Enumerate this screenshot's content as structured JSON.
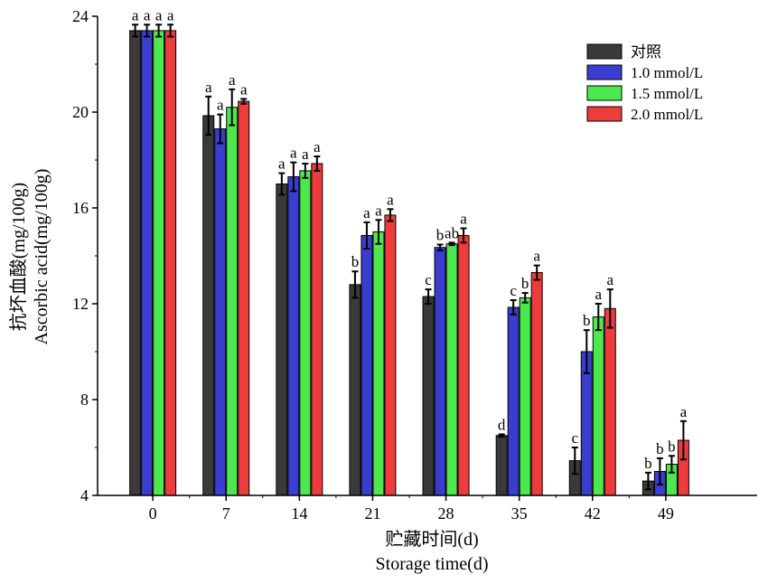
{
  "chart_data": {
    "type": "bar",
    "title": "",
    "xlabel_cn": "贮藏时间(d)",
    "xlabel_en": "Storage time(d)",
    "ylabel_cn": "抗坏血酸(mg/100g)",
    "ylabel_en": "Ascorbic acid(mg/100g)",
    "ylim": [
      4,
      24
    ],
    "yticks": [
      4,
      8,
      12,
      16,
      20,
      24
    ],
    "categories": [
      "0",
      "7",
      "14",
      "21",
      "28",
      "35",
      "42",
      "49"
    ],
    "legend_position": "top-right",
    "series": [
      {
        "name": "对照",
        "color": "#3a3a3a",
        "values": [
          23.4,
          19.85,
          17.0,
          12.8,
          12.3,
          6.5,
          5.45,
          4.6
        ],
        "errors": [
          0.25,
          0.8,
          0.45,
          0.55,
          0.3,
          0.05,
          0.55,
          0.35
        ],
        "labels": [
          "a",
          "a",
          "a",
          "b",
          "c",
          "d",
          "c",
          "b"
        ]
      },
      {
        "name": "1.0 mmol/L",
        "color": "#3a3dd0",
        "values": [
          23.4,
          19.3,
          17.3,
          14.85,
          14.35,
          11.85,
          10.0,
          5.0
        ],
        "errors": [
          0.25,
          0.6,
          0.6,
          0.55,
          0.12,
          0.3,
          0.9,
          0.55
        ],
        "labels": [
          "a",
          "a",
          "a",
          "a",
          "b",
          "c",
          "b",
          "b"
        ]
      },
      {
        "name": "1.5 mmol/L",
        "color": "#4de84d",
        "values": [
          23.4,
          20.2,
          17.55,
          15.0,
          14.5,
          12.25,
          11.45,
          5.3
        ],
        "errors": [
          0.25,
          0.75,
          0.3,
          0.5,
          0.05,
          0.2,
          0.55,
          0.35
        ],
        "labels": [
          "a",
          "a",
          "a",
          "a",
          "ab",
          "b",
          "a",
          "b"
        ]
      },
      {
        "name": "2.0 mmol/L",
        "color": "#ee3b3b",
        "values": [
          23.4,
          20.45,
          17.85,
          15.7,
          14.85,
          13.3,
          11.8,
          6.3
        ],
        "errors": [
          0.25,
          0.1,
          0.3,
          0.25,
          0.3,
          0.3,
          0.8,
          0.8
        ],
        "labels": [
          "a",
          "a",
          "a",
          "a",
          "a",
          "a",
          "a",
          "a"
        ]
      }
    ]
  }
}
